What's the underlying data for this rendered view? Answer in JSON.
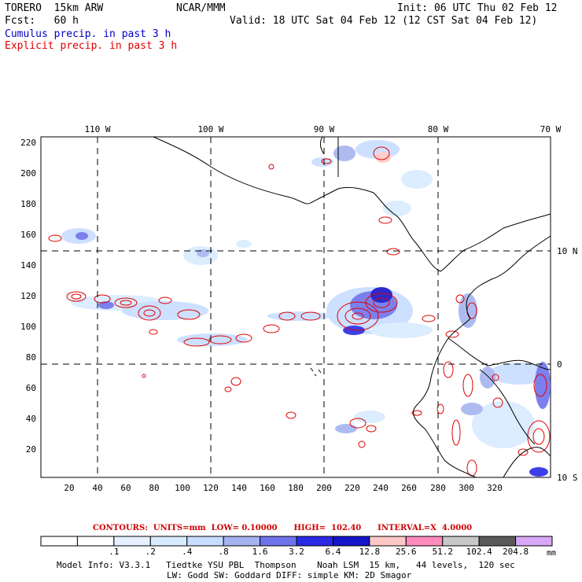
{
  "header": {
    "model": "TORERO  15km ARW",
    "org": "NCAR/MMM",
    "init": "Init: 06 UTC Thu 02 Feb 12",
    "fcst": "Fcst:   60 h",
    "valid": "Valid: 18 UTC Sat 04 Feb 12 (12 CST Sat 04 Feb 12)",
    "legend_cumulus": "Cumulus precip. in past 3 h",
    "legend_explicit": "Explicit precip. in past 3 h"
  },
  "axes": {
    "top_lon_labels": [
      "110 W",
      "100 W",
      "90 W",
      "80 W",
      "70 W"
    ],
    "right_lat_labels": [
      "10 N",
      "0",
      "10 S"
    ],
    "left_y_ticks": [
      "220",
      "200",
      "180",
      "160",
      "140",
      "120",
      "100",
      "80",
      "60",
      "40",
      "20"
    ],
    "bottom_x_ticks": [
      "20",
      "40",
      "60",
      "80",
      "100",
      "120",
      "140",
      "160",
      "180",
      "200",
      "220",
      "240",
      "260",
      "280",
      "300",
      "320"
    ]
  },
  "contour_info": "CONTOURS:  UNITS=mm  LOW= 0.10000      HIGH=  102.40      INTERVAL=X  4.0000",
  "colorbar": {
    "labels": [
      ".1",
      ".2",
      ".4",
      ".8",
      "1.6",
      "3.2",
      "6.4",
      "12.8",
      "25.6",
      "51.2",
      "102.4",
      "204.8"
    ],
    "units": "mm",
    "colors": [
      "#ffffff",
      "#ffffff",
      "#e6f0ff",
      "#d8ecff",
      "#c8ddff",
      "#a5b4f0",
      "#6e73ec",
      "#2a2ae6",
      "#1414c8",
      "#ffc8c8",
      "#ff8cbc",
      "#c8c8c8",
      "#5a5a5a",
      "#d8a8f8"
    ]
  },
  "footer": {
    "line1": "Model Info: V3.3.1   Tiedtke YSU PBL  Thompson    Noah LSM  15 km,   44 levels,  120 sec",
    "line2": "LW: Godd SW: Goddard DIFF: simple KM: 2D Smagor"
  }
}
